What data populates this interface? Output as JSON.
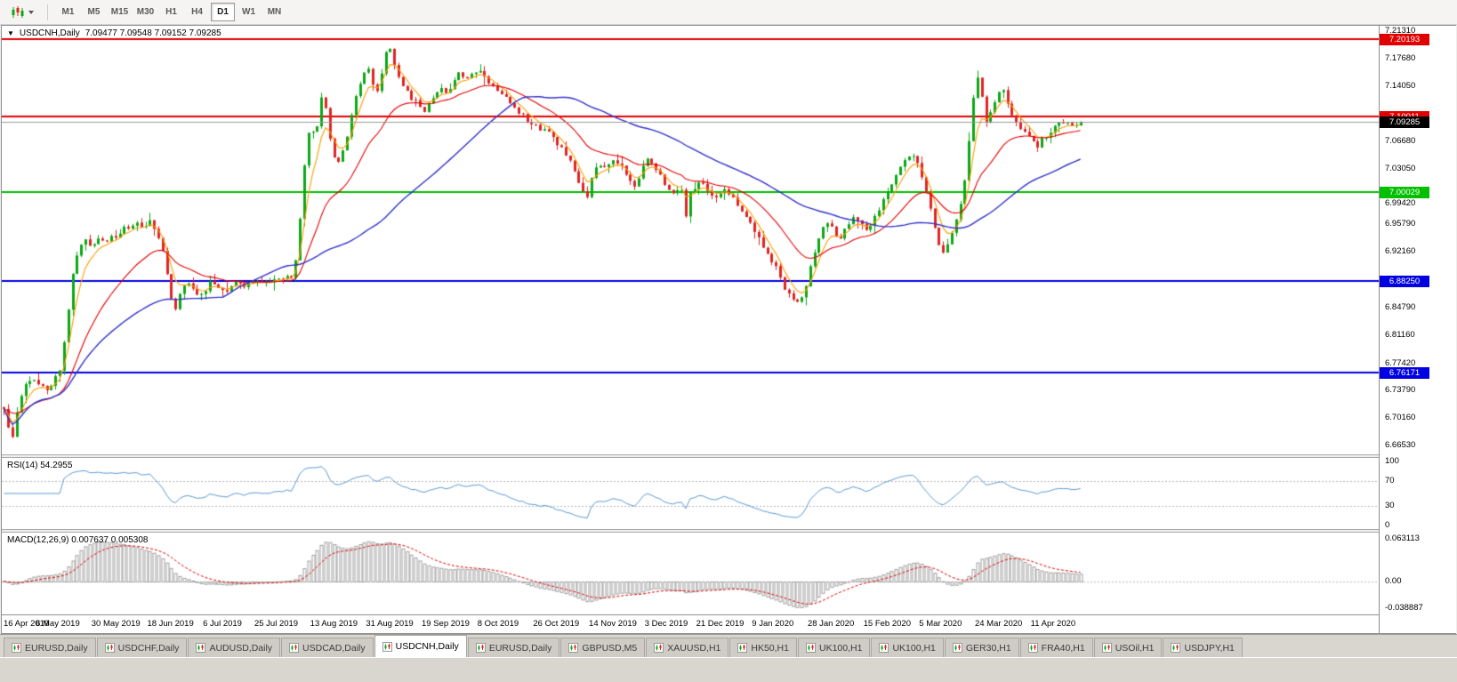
{
  "toolbar": {
    "timeframes": [
      "M1",
      "M5",
      "M15",
      "M30",
      "H1",
      "H4",
      "D1",
      "W1",
      "MN"
    ],
    "active_timeframe": "D1"
  },
  "chart_header": {
    "expander_icon": "▼",
    "symbol_title": "USDCNH,Daily",
    "ohlc_text": "7.09477 7.09548 7.09152 7.09285"
  },
  "chart_data": {
    "type": "candlestick",
    "symbol": "USDCNH",
    "timeframe": "Daily",
    "open": "7.09477",
    "high": "7.09548",
    "low": "7.09152",
    "close": "7.09285",
    "y_axis": {
      "min": 6.6538,
      "max": 7.22,
      "ticks": [
        "7.21310",
        "7.17680",
        "7.14050",
        "7.06680",
        "7.03050",
        "6.99420",
        "6.95790",
        "6.92160",
        "6.84790",
        "6.81160",
        "6.77420",
        "6.73790",
        "6.70160",
        "6.66530"
      ]
    },
    "x_labels": [
      "16 Apr 2019",
      "6 May 2019",
      "30 May 2019",
      "18 Jun 2019",
      "6 Jul 2019",
      "25 Jul 2019",
      "13 Aug 2019",
      "31 Aug 2019",
      "19 Sep 2019",
      "8 Oct 2019",
      "26 Oct 2019",
      "14 Nov 2019",
      "3 Dec 2019",
      "21 Dec 2019",
      "9 Jan 2020",
      "28 Jan 2020",
      "15 Feb 2020",
      "5 Mar 2020",
      "24 Mar 2020",
      "11 Apr 2020"
    ],
    "num_candles": 252,
    "candle_colors": {
      "bull": "#0BA816",
      "bear": "#E02424"
    },
    "horizontal_lines": [
      {
        "price": 7.20193,
        "label": "7.20193",
        "color": "#E00000"
      },
      {
        "price": 7.10011,
        "label": "7.10011",
        "color": "#E00000"
      },
      {
        "price": 7.00029,
        "label": "7.00029",
        "color": "#00C000"
      },
      {
        "price": 6.8825,
        "label": "6.88250",
        "color": "#0000E0"
      },
      {
        "price": 6.76171,
        "label": "6.76171",
        "color": "#0000E0"
      }
    ],
    "current_price": {
      "value": 7.09285,
      "label": "7.09285",
      "line_color": "#9B9B9B",
      "badge_color": "#000000"
    },
    "moving_averages": [
      {
        "type": "ema",
        "period": 5,
        "color": "#FF9D00"
      },
      {
        "type": "ema",
        "period": 20,
        "color": "#E60000"
      },
      {
        "type": "sma",
        "period": 52,
        "color": "#3333CC"
      }
    ],
    "rsi": {
      "header": "RSI(14) 54.2955",
      "period": 14,
      "value": 54.2955,
      "axis_labels": [
        "100",
        "70",
        "30",
        "0"
      ],
      "levels": [
        70,
        30
      ],
      "line_color": "#5B9BD5"
    },
    "macd": {
      "header": "MACD(12,26,9) 0.007637 0.005308",
      "fast": 12,
      "slow": 26,
      "signal": 9,
      "values": [
        0.007637,
        0.005308
      ],
      "axis_labels": [
        "0.063113",
        "0.00",
        "-0.038887"
      ],
      "hist_color": "#A0A0A0",
      "signal_color": "#E00000"
    },
    "price_path": [
      [
        0.0,
        6.712
      ],
      [
        0.004,
        6.692
      ],
      [
        0.008,
        6.68
      ],
      [
        0.013,
        6.718
      ],
      [
        0.018,
        6.745
      ],
      [
        0.024,
        6.752
      ],
      [
        0.03,
        6.748
      ],
      [
        0.036,
        6.744
      ],
      [
        0.042,
        6.74
      ],
      [
        0.048,
        6.755
      ],
      [
        0.053,
        6.772
      ],
      [
        0.057,
        6.81
      ],
      [
        0.061,
        6.865
      ],
      [
        0.065,
        6.905
      ],
      [
        0.07,
        6.928
      ],
      [
        0.076,
        6.937
      ],
      [
        0.082,
        6.925
      ],
      [
        0.088,
        6.938
      ],
      [
        0.094,
        6.93
      ],
      [
        0.1,
        6.94
      ],
      [
        0.108,
        6.948
      ],
      [
        0.116,
        6.955
      ],
      [
        0.124,
        6.962
      ],
      [
        0.13,
        6.953
      ],
      [
        0.136,
        6.962
      ],
      [
        0.142,
        6.948
      ],
      [
        0.148,
        6.92
      ],
      [
        0.154,
        6.868
      ],
      [
        0.159,
        6.845
      ],
      [
        0.164,
        6.868
      ],
      [
        0.17,
        6.88
      ],
      [
        0.177,
        6.868
      ],
      [
        0.184,
        6.862
      ],
      [
        0.191,
        6.88
      ],
      [
        0.199,
        6.876
      ],
      [
        0.207,
        6.87
      ],
      [
        0.215,
        6.88
      ],
      [
        0.223,
        6.876
      ],
      [
        0.231,
        6.884
      ],
      [
        0.241,
        6.88
      ],
      [
        0.251,
        6.886
      ],
      [
        0.261,
        6.889
      ],
      [
        0.267,
        6.884
      ],
      [
        0.272,
        6.915
      ],
      [
        0.276,
        6.985
      ],
      [
        0.28,
        7.055
      ],
      [
        0.284,
        7.092
      ],
      [
        0.288,
        7.072
      ],
      [
        0.292,
        7.098
      ],
      [
        0.296,
        7.132
      ],
      [
        0.3,
        7.098
      ],
      [
        0.304,
        7.058
      ],
      [
        0.309,
        7.035
      ],
      [
        0.314,
        7.052
      ],
      [
        0.319,
        7.078
      ],
      [
        0.324,
        7.108
      ],
      [
        0.329,
        7.14
      ],
      [
        0.334,
        7.155
      ],
      [
        0.338,
        7.168
      ],
      [
        0.342,
        7.146
      ],
      [
        0.346,
        7.13
      ],
      [
        0.35,
        7.156
      ],
      [
        0.354,
        7.18
      ],
      [
        0.358,
        7.193
      ],
      [
        0.362,
        7.172
      ],
      [
        0.367,
        7.15
      ],
      [
        0.372,
        7.136
      ],
      [
        0.378,
        7.126
      ],
      [
        0.385,
        7.115
      ],
      [
        0.392,
        7.108
      ],
      [
        0.399,
        7.126
      ],
      [
        0.405,
        7.141
      ],
      [
        0.411,
        7.128
      ],
      [
        0.417,
        7.148
      ],
      [
        0.423,
        7.158
      ],
      [
        0.429,
        7.146
      ],
      [
        0.435,
        7.156
      ],
      [
        0.441,
        7.164
      ],
      [
        0.447,
        7.152
      ],
      [
        0.453,
        7.141
      ],
      [
        0.46,
        7.131
      ],
      [
        0.467,
        7.122
      ],
      [
        0.475,
        7.112
      ],
      [
        0.483,
        7.1
      ],
      [
        0.491,
        7.09
      ],
      [
        0.499,
        7.082
      ],
      [
        0.507,
        7.077
      ],
      [
        0.515,
        7.064
      ],
      [
        0.523,
        7.047
      ],
      [
        0.53,
        7.028
      ],
      [
        0.536,
        7.004
      ],
      [
        0.541,
        6.992
      ],
      [
        0.546,
        7.02
      ],
      [
        0.552,
        7.04
      ],
      [
        0.559,
        7.032
      ],
      [
        0.566,
        7.042
      ],
      [
        0.573,
        7.034
      ],
      [
        0.58,
        7.017
      ],
      [
        0.586,
        7.007
      ],
      [
        0.592,
        7.03
      ],
      [
        0.598,
        7.047
      ],
      [
        0.604,
        7.034
      ],
      [
        0.611,
        7.017
      ],
      [
        0.618,
        7.004
      ],
      [
        0.624,
        7.0
      ],
      [
        0.629,
        7.008
      ],
      [
        0.633,
        6.966
      ],
      [
        0.637,
        6.997
      ],
      [
        0.642,
        7.008
      ],
      [
        0.648,
        7.012
      ],
      [
        0.655,
        7.0
      ],
      [
        0.662,
        6.994
      ],
      [
        0.669,
        7.002
      ],
      [
        0.676,
        6.994
      ],
      [
        0.683,
        6.979
      ],
      [
        0.69,
        6.967
      ],
      [
        0.697,
        6.949
      ],
      [
        0.704,
        6.929
      ],
      [
        0.711,
        6.917
      ],
      [
        0.718,
        6.897
      ],
      [
        0.725,
        6.875
      ],
      [
        0.731,
        6.86
      ],
      [
        0.736,
        6.851
      ],
      [
        0.741,
        6.86
      ],
      [
        0.746,
        6.882
      ],
      [
        0.752,
        6.916
      ],
      [
        0.758,
        6.943
      ],
      [
        0.764,
        6.962
      ],
      [
        0.77,
        6.95
      ],
      [
        0.776,
        6.938
      ],
      [
        0.782,
        6.952
      ],
      [
        0.788,
        6.967
      ],
      [
        0.794,
        6.959
      ],
      [
        0.801,
        6.951
      ],
      [
        0.808,
        6.967
      ],
      [
        0.815,
        6.984
      ],
      [
        0.822,
        7.004
      ],
      [
        0.829,
        7.021
      ],
      [
        0.836,
        7.039
      ],
      [
        0.843,
        7.051
      ],
      [
        0.849,
        7.037
      ],
      [
        0.855,
        7.011
      ],
      [
        0.861,
        6.974
      ],
      [
        0.867,
        6.94
      ],
      [
        0.872,
        6.916
      ],
      [
        0.877,
        6.93
      ],
      [
        0.882,
        6.95
      ],
      [
        0.887,
        6.973
      ],
      [
        0.892,
        7.012
      ],
      [
        0.897,
        7.078
      ],
      [
        0.901,
        7.13
      ],
      [
        0.905,
        7.154
      ],
      [
        0.909,
        7.118
      ],
      [
        0.913,
        7.09
      ],
      [
        0.917,
        7.106
      ],
      [
        0.922,
        7.126
      ],
      [
        0.927,
        7.14
      ],
      [
        0.932,
        7.119
      ],
      [
        0.937,
        7.1
      ],
      [
        0.942,
        7.088
      ],
      [
        0.948,
        7.08
      ],
      [
        0.954,
        7.068
      ],
      [
        0.96,
        7.062
      ],
      [
        0.966,
        7.072
      ],
      [
        0.972,
        7.082
      ],
      [
        0.978,
        7.09
      ],
      [
        0.985,
        7.094
      ],
      [
        0.992,
        7.088
      ],
      [
        1.0,
        7.0929
      ]
    ]
  },
  "bottom_tabs": {
    "active_index": 4,
    "tabs": [
      "EURUSD,Daily",
      "USDCHF,Daily",
      "AUDUSD,Daily",
      "USDCAD,Daily",
      "USDCNH,Daily",
      "EURUSD,Daily",
      "GBPUSD,M5",
      "XAUUSD,H1",
      "HK50,H1",
      "UK100,H1",
      "UK100,H1",
      "GER30,H1",
      "FRA40,H1",
      "USOil,H1",
      "USDJPY,H1"
    ]
  }
}
